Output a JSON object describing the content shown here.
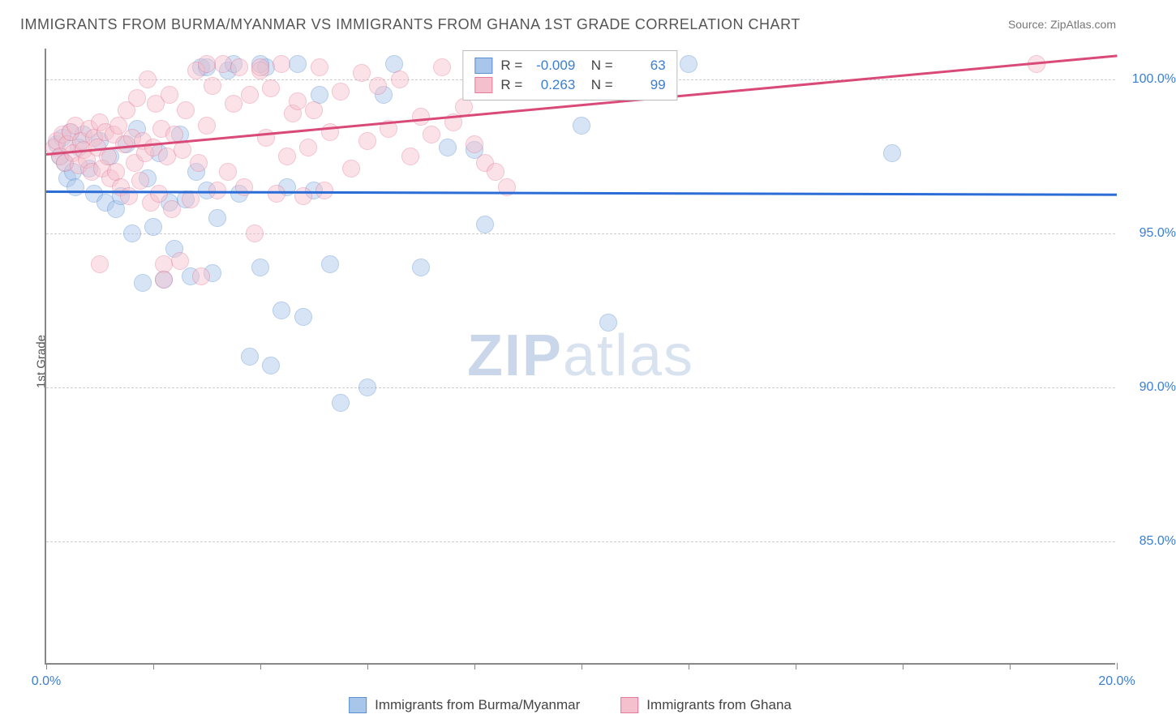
{
  "chart": {
    "type": "scatter",
    "title": "IMMIGRANTS FROM BURMA/MYANMAR VS IMMIGRANTS FROM GHANA 1ST GRADE CORRELATION CHART",
    "source": "Source: ZipAtlas.com",
    "ylabel": "1st Grade",
    "watermark": {
      "prefix": "ZIP",
      "suffix": "atlas"
    },
    "background_color": "#ffffff",
    "grid_color": "#cccccc",
    "axis_color": "#888888",
    "tick_label_color": "#3b7fd4",
    "text_color": "#555555",
    "xlim": [
      0,
      20
    ],
    "ylim": [
      81,
      101
    ],
    "xticks": [
      0,
      2,
      4,
      6,
      8,
      10,
      12,
      14,
      16,
      18,
      20
    ],
    "xtick_labels": {
      "0": "0.0%",
      "20": "20.0%"
    },
    "yticks": [
      85,
      90,
      95,
      100
    ],
    "ytick_labels": [
      "85.0%",
      "90.0%",
      "95.0%",
      "100.0%"
    ],
    "marker_radius": 11,
    "marker_opacity": 0.45,
    "series": [
      {
        "name": "Immigrants from Burma/Myanmar",
        "color_fill": "#a8c5ea",
        "color_stroke": "#5b8fd0",
        "r_value": "-0.009",
        "n_value": "63",
        "trend": {
          "x1": 0,
          "y1": 96.4,
          "x2": 20,
          "y2": 96.3,
          "color": "#2b6cd6"
        },
        "points": [
          [
            0.2,
            97.9
          ],
          [
            0.25,
            97.5
          ],
          [
            0.3,
            98.1
          ],
          [
            0.35,
            97.3
          ],
          [
            0.4,
            96.8
          ],
          [
            0.45,
            98.3
          ],
          [
            0.5,
            97.0
          ],
          [
            0.55,
            96.5
          ],
          [
            0.6,
            97.8
          ],
          [
            0.7,
            98.2
          ],
          [
            0.8,
            97.1
          ],
          [
            0.9,
            96.3
          ],
          [
            1.0,
            98.0
          ],
          [
            1.1,
            96.0
          ],
          [
            1.2,
            97.5
          ],
          [
            1.3,
            95.8
          ],
          [
            1.4,
            96.2
          ],
          [
            1.5,
            97.9
          ],
          [
            1.6,
            95.0
          ],
          [
            1.7,
            98.4
          ],
          [
            1.8,
            93.4
          ],
          [
            1.9,
            96.8
          ],
          [
            2.0,
            95.2
          ],
          [
            2.1,
            97.6
          ],
          [
            2.2,
            93.5
          ],
          [
            2.3,
            96.0
          ],
          [
            2.4,
            94.5
          ],
          [
            2.5,
            98.2
          ],
          [
            2.6,
            96.1
          ],
          [
            2.7,
            93.6
          ],
          [
            2.8,
            97.0
          ],
          [
            2.9,
            100.4
          ],
          [
            3.0,
            96.4
          ],
          [
            3.1,
            93.7
          ],
          [
            3.2,
            95.5
          ],
          [
            3.4,
            100.3
          ],
          [
            3.5,
            100.5
          ],
          [
            3.6,
            96.3
          ],
          [
            3.8,
            91.0
          ],
          [
            4.0,
            93.9
          ],
          [
            4.1,
            100.4
          ],
          [
            4.2,
            90.7
          ],
          [
            4.4,
            92.5
          ],
          [
            4.5,
            96.5
          ],
          [
            4.7,
            100.5
          ],
          [
            4.8,
            92.3
          ],
          [
            5.0,
            96.4
          ],
          [
            5.1,
            99.5
          ],
          [
            5.3,
            94.0
          ],
          [
            5.5,
            89.5
          ],
          [
            6.0,
            90.0
          ],
          [
            6.3,
            99.5
          ],
          [
            6.5,
            100.5
          ],
          [
            7.0,
            93.9
          ],
          [
            7.5,
            97.8
          ],
          [
            8.0,
            97.7
          ],
          [
            8.2,
            95.3
          ],
          [
            10.0,
            98.5
          ],
          [
            10.5,
            92.1
          ],
          [
            12.0,
            100.5
          ],
          [
            15.8,
            97.6
          ],
          [
            4.0,
            100.5
          ],
          [
            3.0,
            100.4
          ]
        ]
      },
      {
        "name": "Immigrants from Ghana",
        "color_fill": "#f5c0cd",
        "color_stroke": "#e67a9a",
        "r_value": "0.263",
        "n_value": "99",
        "trend": {
          "x1": 0,
          "y1": 97.6,
          "x2": 20,
          "y2": 100.8,
          "color": "#d94a78"
        },
        "points": [
          [
            0.15,
            97.8
          ],
          [
            0.2,
            98.0
          ],
          [
            0.25,
            97.5
          ],
          [
            0.3,
            98.2
          ],
          [
            0.35,
            97.3
          ],
          [
            0.4,
            97.9
          ],
          [
            0.45,
            98.3
          ],
          [
            0.5,
            97.6
          ],
          [
            0.55,
            98.5
          ],
          [
            0.6,
            97.2
          ],
          [
            0.65,
            98.0
          ],
          [
            0.7,
            97.7
          ],
          [
            0.75,
            97.4
          ],
          [
            0.8,
            98.4
          ],
          [
            0.85,
            97.0
          ],
          [
            0.9,
            98.1
          ],
          [
            0.95,
            97.8
          ],
          [
            1.0,
            98.6
          ],
          [
            1.05,
            97.1
          ],
          [
            1.1,
            98.3
          ],
          [
            1.15,
            97.5
          ],
          [
            1.2,
            96.8
          ],
          [
            1.25,
            98.2
          ],
          [
            1.3,
            97.0
          ],
          [
            1.35,
            98.5
          ],
          [
            1.4,
            96.5
          ],
          [
            1.45,
            97.9
          ],
          [
            1.5,
            99.0
          ],
          [
            1.55,
            96.2
          ],
          [
            1.6,
            98.1
          ],
          [
            1.65,
            97.3
          ],
          [
            1.7,
            99.4
          ],
          [
            1.75,
            96.7
          ],
          [
            1.8,
            98.0
          ],
          [
            1.85,
            97.6
          ],
          [
            1.9,
            100.0
          ],
          [
            1.95,
            96.0
          ],
          [
            2.0,
            97.8
          ],
          [
            2.05,
            99.2
          ],
          [
            2.1,
            96.3
          ],
          [
            2.15,
            98.4
          ],
          [
            2.2,
            94.0
          ],
          [
            2.25,
            97.5
          ],
          [
            2.3,
            99.5
          ],
          [
            2.35,
            95.8
          ],
          [
            2.4,
            98.2
          ],
          [
            2.5,
            94.1
          ],
          [
            2.55,
            97.7
          ],
          [
            2.6,
            99.0
          ],
          [
            2.7,
            96.1
          ],
          [
            2.8,
            100.3
          ],
          [
            2.85,
            97.3
          ],
          [
            2.9,
            93.6
          ],
          [
            3.0,
            98.5
          ],
          [
            3.1,
            99.8
          ],
          [
            3.2,
            96.4
          ],
          [
            3.3,
            100.5
          ],
          [
            3.4,
            97.0
          ],
          [
            3.5,
            99.2
          ],
          [
            3.6,
            100.4
          ],
          [
            3.7,
            96.5
          ],
          [
            3.8,
            99.5
          ],
          [
            3.9,
            95.0
          ],
          [
            4.0,
            100.3
          ],
          [
            4.1,
            98.1
          ],
          [
            4.2,
            99.7
          ],
          [
            4.3,
            96.3
          ],
          [
            4.4,
            100.5
          ],
          [
            4.5,
            97.5
          ],
          [
            4.6,
            98.9
          ],
          [
            4.7,
            99.3
          ],
          [
            4.8,
            96.2
          ],
          [
            4.9,
            97.8
          ],
          [
            5.0,
            99.0
          ],
          [
            5.1,
            100.4
          ],
          [
            5.2,
            96.4
          ],
          [
            5.3,
            98.3
          ],
          [
            5.5,
            99.6
          ],
          [
            5.7,
            97.1
          ],
          [
            5.9,
            100.2
          ],
          [
            6.0,
            98.0
          ],
          [
            6.2,
            99.8
          ],
          [
            6.4,
            98.4
          ],
          [
            6.6,
            100.0
          ],
          [
            6.8,
            97.5
          ],
          [
            7.0,
            98.8
          ],
          [
            7.2,
            98.2
          ],
          [
            7.4,
            100.4
          ],
          [
            7.6,
            98.6
          ],
          [
            7.8,
            99.1
          ],
          [
            8.0,
            97.9
          ],
          [
            8.2,
            97.3
          ],
          [
            8.4,
            97.0
          ],
          [
            8.6,
            96.5
          ],
          [
            1.0,
            94.0
          ],
          [
            2.2,
            93.5
          ],
          [
            3.0,
            100.5
          ],
          [
            4.0,
            100.4
          ],
          [
            18.5,
            100.5
          ]
        ]
      }
    ]
  }
}
